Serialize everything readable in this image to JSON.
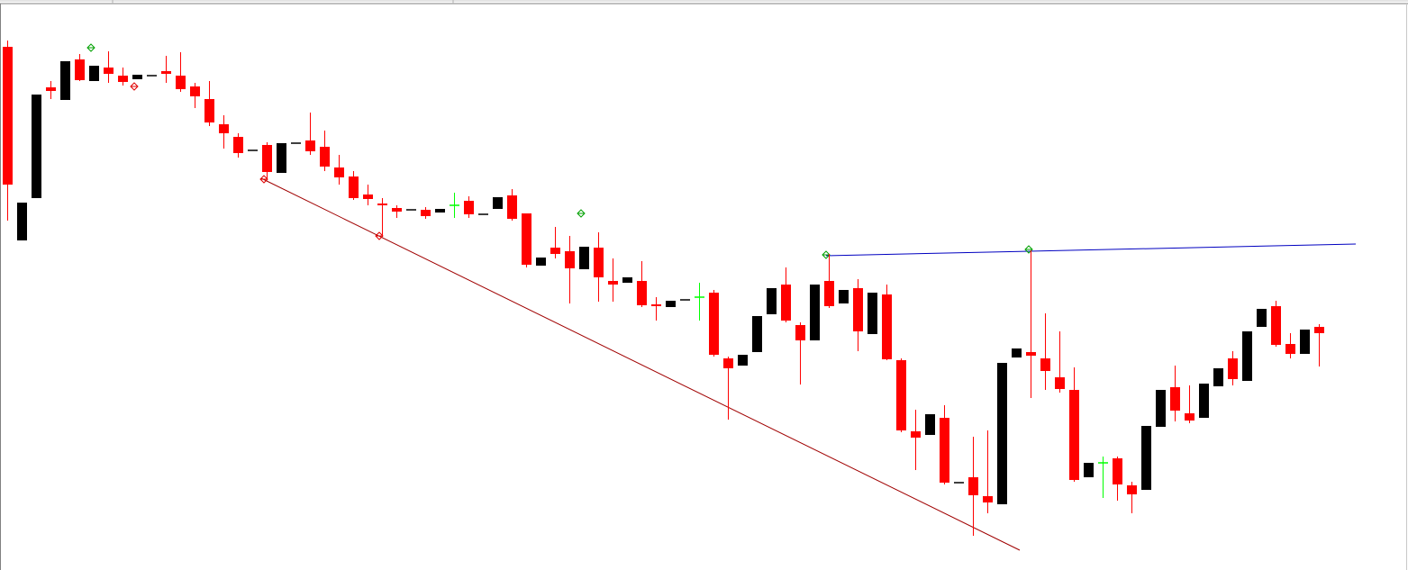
{
  "chart_data": {
    "type": "candlestick",
    "categories": [
      null,
      null,
      null,
      null,
      null,
      null,
      null,
      null,
      null,
      null,
      null,
      null,
      null,
      null,
      null,
      null,
      null,
      null,
      null,
      null,
      null,
      null,
      null,
      null,
      null,
      null,
      null,
      null,
      null,
      null,
      null,
      null,
      null,
      null,
      null,
      null,
      null,
      null,
      null,
      null,
      null,
      null,
      null,
      null,
      null,
      null,
      null,
      null,
      null,
      null,
      null,
      null,
      null,
      null,
      null,
      null,
      null,
      null,
      null,
      null,
      null,
      null,
      null,
      null,
      null,
      null,
      null,
      null,
      null,
      null,
      null,
      null,
      null,
      null,
      null,
      null,
      null,
      null,
      null,
      null,
      null,
      null,
      null,
      null,
      null,
      null,
      null,
      null,
      null,
      null,
      null,
      null
    ],
    "open": [
      581,
      366,
      413,
      536,
      522,
      567,
      543,
      558,
      549,
      545,
      549,
      554,
      549,
      537,
      523,
      495,
      481,
      466,
      472,
      441,
      474,
      477,
      470,
      447,
      437,
      417,
      407,
      402,
      400,
      400,
      397,
      405,
      410,
      395,
      401,
      416,
      396,
      338,
      358,
      354,
      334,
      358,
      321,
      319,
      321,
      295,
      292,
      300,
      303,
      308,
      235,
      227,
      242,
      284,
      317,
      272,
      255,
      321,
      296,
      313,
      262,
      306,
      233,
      154,
      150,
      169,
      97,
      103,
      82,
      73,
      236,
      242,
      235,
      214,
      200,
      103,
      119,
      124,
      94,
      89,
      159,
      203,
      174,
      169,
      204,
      235,
      210,
      270,
      293,
      251,
      240,
      270
    ],
    "high": [
      588,
      408,
      528,
      543,
      565,
      573,
      560,
      576,
      558,
      550,
      549,
      571,
      575,
      541,
      543,
      505,
      485,
      466,
      475,
      474,
      474,
      508,
      488,
      461,
      443,
      428,
      413,
      405,
      400,
      403,
      401,
      419,
      415,
      395,
      414,
      423,
      396,
      347,
      381,
      371,
      359,
      375,
      346,
      325,
      343,
      303,
      299,
      300,
      319,
      311,
      237,
      239,
      282,
      313,
      336,
      275,
      317,
      351,
      311,
      323,
      308,
      317,
      235,
      178,
      173,
      183,
      97,
      148,
      155,
      230,
      246,
      355,
      285,
      265,
      225,
      119,
      126,
      126,
      98,
      160,
      200,
      227,
      205,
      207,
      224,
      243,
      265,
      290,
      299,
      263,
      267,
      273
    ],
    "low": [
      388,
      366,
      413,
      523,
      522,
      543,
      543,
      541,
      538,
      545,
      549,
      541,
      531,
      513,
      493,
      468,
      458,
      466,
      433,
      441,
      474,
      461,
      443,
      428,
      411,
      405,
      371,
      391,
      400,
      390,
      397,
      391,
      391,
      395,
      401,
      388,
      336,
      338,
      346,
      296,
      334,
      298,
      298,
      319,
      292,
      277,
      292,
      300,
      277,
      237,
      167,
      227,
      242,
      284,
      275,
      206,
      255,
      291,
      296,
      243,
      262,
      233,
      153,
      111,
      150,
      95,
      97,
      38,
      63,
      73,
      236,
      191,
      200,
      197,
      98,
      103,
      80,
      77,
      63,
      89,
      159,
      165,
      163,
      169,
      204,
      205,
      210,
      270,
      248,
      235,
      240,
      226
    ],
    "close": [
      428,
      408,
      528,
      532,
      565,
      544,
      560,
      551,
      542,
      550,
      549,
      551,
      534,
      526,
      497,
      485,
      463,
      466,
      442,
      474,
      474,
      465,
      448,
      436,
      413,
      412,
      405,
      398,
      400,
      393,
      401,
      405,
      395,
      395,
      414,
      390,
      339,
      347,
      351,
      335,
      359,
      325,
      317,
      325,
      294,
      293,
      299,
      300,
      303,
      239,
      224,
      239,
      282,
      313,
      277,
      255,
      317,
      293,
      311,
      265,
      308,
      234,
      155,
      147,
      173,
      97,
      97,
      83,
      75,
      230,
      246,
      238,
      221,
      201,
      100,
      119,
      119,
      95,
      84,
      160,
      200,
      177,
      166,
      207,
      224,
      212,
      265,
      290,
      250,
      240,
      267,
      263
    ],
    "ylim": [
      0,
      633
    ],
    "up_color": "#000000",
    "down_color": "#ff0000",
    "doji_color": "#00ff00"
  }
}
